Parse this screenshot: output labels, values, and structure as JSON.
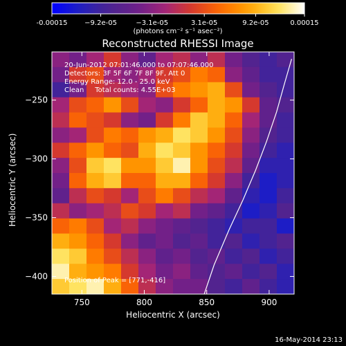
{
  "chart_data": {
    "type": "heatmap",
    "title": "Reconstructed RHESSI Image",
    "xlabel": "Heliocentric X (arcsec)",
    "ylabel": "Heliocentric Y (arcsec)",
    "xlim": [
      726,
      920
    ],
    "ylim": [
      -415,
      -209
    ],
    "xticks": [
      750,
      800,
      850,
      900
    ],
    "yticks": [
      -250,
      -300,
      -350,
      -400
    ],
    "colorbar": {
      "range": [
        -0.00015,
        0.00015
      ],
      "tick_labels": [
        "-0.00015",
        "−9.2e-05",
        "−3.1e-05",
        "3.1e-05",
        "9.2e-05",
        "0.00015"
      ],
      "tick_values": [
        -0.00015,
        -9.2e-05,
        -3.1e-05,
        3.1e-05,
        9.2e-05,
        0.00015
      ],
      "units": "(photons cm⁻² s⁻¹ asec⁻²)",
      "colormap": [
        "#0000ff",
        "#2020c0",
        "#4a2490",
        "#6a1f8a",
        "#a0247a",
        "#d83a2a",
        "#ff6a00",
        "#ffa200",
        "#ffe050",
        "#ffffff"
      ]
    },
    "annotations": [
      "20-Jun-2012 07:01:46.000 to 07:07:46.000",
      "Detectors: 3F 5F 6F 7F 8F 9F, Att 0",
      "Energy Range: 12.0 - 25.0 keV",
      "Clean     Total counts: 4.55E+03"
    ],
    "peak_label": "Position of Peak = [771,-416]",
    "peak_position": [
      771,
      -416
    ],
    "limb_curve": {
      "x": [
        848,
        856,
        868,
        879,
        889,
        898,
        906,
        912,
        918
      ],
      "y": [
        -415,
        -390,
        -360,
        -335,
        -310,
        -285,
        -260,
        -237,
        -215
      ]
    },
    "intensity_grid": {
      "rows": 16,
      "cols": 14,
      "values": [
        [
          -0.2,
          -0.3,
          -0.1,
          0.1,
          -0.2,
          -0.4,
          -0.1,
          0.0,
          -0.2,
          0.0,
          -0.3,
          -0.5,
          -0.6,
          -0.5
        ],
        [
          -0.3,
          0.1,
          0.2,
          -0.1,
          -0.2,
          -0.1,
          0.1,
          0.2,
          0.4,
          0.3,
          -0.2,
          -0.4,
          -0.6,
          -0.6
        ],
        [
          -0.6,
          -0.3,
          0.1,
          0.0,
          -0.1,
          -0.2,
          0.2,
          0.4,
          0.5,
          0.6,
          0.2,
          -0.3,
          -0.5,
          -0.6
        ],
        [
          -0.1,
          0.2,
          0.3,
          0.5,
          0.2,
          -0.1,
          -0.2,
          0.1,
          0.3,
          0.6,
          0.5,
          0.1,
          -0.4,
          -0.5
        ],
        [
          0.0,
          0.3,
          0.2,
          0.1,
          -0.2,
          -0.3,
          0.1,
          0.4,
          0.7,
          0.6,
          0.3,
          -0.1,
          -0.4,
          -0.6
        ],
        [
          -0.2,
          -0.1,
          0.2,
          0.4,
          0.3,
          0.5,
          0.6,
          0.8,
          0.7,
          0.5,
          0.2,
          -0.2,
          -0.5,
          -0.6
        ],
        [
          0.1,
          0.3,
          0.5,
          0.3,
          0.2,
          0.6,
          0.8,
          0.7,
          0.5,
          0.3,
          0.1,
          -0.3,
          -0.6,
          -0.7
        ],
        [
          -0.2,
          0.2,
          0.7,
          0.8,
          0.5,
          0.5,
          0.7,
          0.9,
          0.5,
          0.2,
          0.0,
          -0.4,
          -0.7,
          -0.7
        ],
        [
          -0.3,
          0.3,
          0.6,
          0.7,
          0.3,
          0.3,
          0.6,
          0.6,
          0.3,
          0.1,
          -0.2,
          -0.6,
          -0.8,
          -0.7
        ],
        [
          -0.4,
          0.0,
          0.2,
          0.1,
          -0.1,
          0.2,
          0.4,
          0.2,
          0.0,
          -0.1,
          -0.4,
          -0.7,
          -0.8,
          -0.6
        ],
        [
          0.0,
          -0.2,
          -0.1,
          0.0,
          0.2,
          0.1,
          -0.1,
          0.0,
          -0.3,
          -0.4,
          -0.6,
          -0.8,
          -0.7,
          -0.5
        ],
        [
          0.3,
          0.4,
          0.2,
          -0.1,
          0.0,
          -0.2,
          -0.3,
          -0.4,
          -0.5,
          -0.6,
          -0.7,
          -0.6,
          -0.6,
          -0.8
        ],
        [
          0.6,
          0.5,
          0.3,
          0.1,
          -0.2,
          -0.4,
          -0.3,
          -0.5,
          -0.4,
          -0.6,
          -0.5,
          -0.7,
          -0.6,
          -0.5
        ],
        [
          0.8,
          0.7,
          0.4,
          0.2,
          0.0,
          -0.2,
          -0.4,
          -0.3,
          -0.5,
          -0.4,
          -0.6,
          -0.5,
          -0.7,
          -0.6
        ],
        [
          0.9,
          0.6,
          0.5,
          0.4,
          0.1,
          -0.1,
          -0.3,
          -0.2,
          -0.4,
          -0.5,
          -0.4,
          -0.6,
          -0.5,
          -0.7
        ],
        [
          0.7,
          0.8,
          0.9,
          0.6,
          0.3,
          0.0,
          -0.2,
          -0.3,
          -0.3,
          -0.5,
          -0.6,
          -0.4,
          -0.6,
          -0.7
        ]
      ]
    }
  },
  "footer_date": "16-May-2014 23:13"
}
